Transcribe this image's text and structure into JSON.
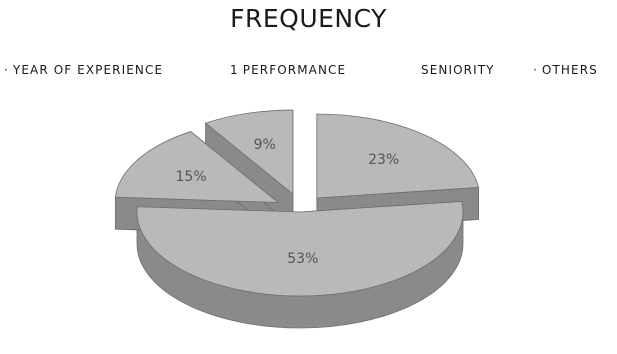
{
  "chart_data": {
    "type": "pie",
    "title": "FREQUENCY",
    "legend": {
      "position": "top",
      "entries": [
        {
          "marker": "·",
          "label": "YEAR OF EXPERIENCE"
        },
        {
          "marker": "1",
          "label": "PERFORMANCE"
        },
        {
          "marker": "",
          "label": "SENIORITY"
        },
        {
          "marker": "·",
          "label": "OTHERS"
        }
      ]
    },
    "slices": [
      {
        "label": "23%",
        "value": 23,
        "exploded": true
      },
      {
        "label": "53%",
        "value": 53,
        "exploded": false
      },
      {
        "label": "15%",
        "value": 15,
        "exploded": true
      },
      {
        "label": "9%",
        "value": 9,
        "exploded": true
      }
    ],
    "style": "3d-exploded",
    "colors": {
      "top": "#b9b9b9",
      "side": "#8a8a8a",
      "edge": "#6e6e6e",
      "label": "#555555"
    }
  }
}
